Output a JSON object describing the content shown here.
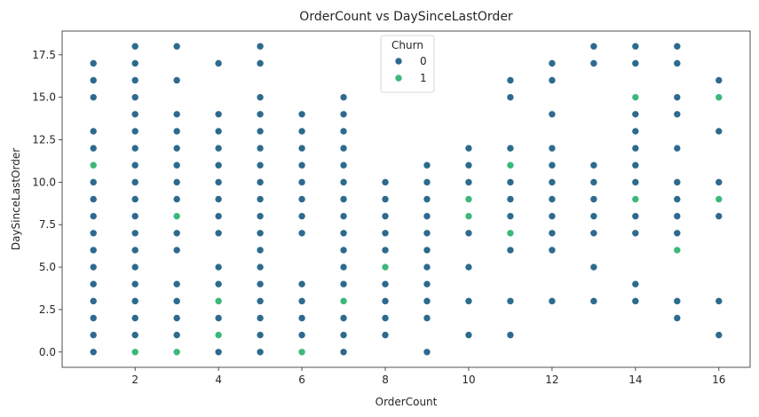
{
  "chart_data": {
    "type": "scatter",
    "title": "OrderCount vs DaySinceLastOrder",
    "xlabel": "OrderCount",
    "ylabel": "DaySinceLastOrder",
    "xlim": [
      0.25,
      16.75
    ],
    "ylim": [
      -0.9,
      18.9
    ],
    "xticks": [
      2,
      4,
      6,
      8,
      10,
      12,
      14,
      16
    ],
    "xtick_labels": [
      "2",
      "4",
      "6",
      "8",
      "10",
      "12",
      "14",
      "16"
    ],
    "yticks": [
      0,
      2.5,
      5,
      7.5,
      10,
      12.5,
      15,
      17.5
    ],
    "ytick_labels": [
      "0.0",
      "2.5",
      "5.0",
      "7.5",
      "10.0",
      "12.5",
      "15.0",
      "17.5"
    ],
    "grid": false,
    "legend": {
      "title": "Churn",
      "placement": "top-center"
    },
    "series": [
      {
        "name": "0",
        "color": "#2d6a8e",
        "points": [
          [
            1,
            0
          ],
          [
            1,
            1
          ],
          [
            1,
            2
          ],
          [
            1,
            3
          ],
          [
            1,
            4
          ],
          [
            1,
            5
          ],
          [
            1,
            6
          ],
          [
            1,
            7
          ],
          [
            1,
            8
          ],
          [
            1,
            9
          ],
          [
            1,
            10
          ],
          [
            1,
            12
          ],
          [
            1,
            13
          ],
          [
            1,
            15
          ],
          [
            1,
            16
          ],
          [
            1,
            17
          ],
          [
            2,
            1
          ],
          [
            2,
            2
          ],
          [
            2,
            3
          ],
          [
            2,
            4
          ],
          [
            2,
            5
          ],
          [
            2,
            6
          ],
          [
            2,
            7
          ],
          [
            2,
            8
          ],
          [
            2,
            9
          ],
          [
            2,
            10
          ],
          [
            2,
            11
          ],
          [
            2,
            12
          ],
          [
            2,
            13
          ],
          [
            2,
            14
          ],
          [
            2,
            15
          ],
          [
            2,
            16
          ],
          [
            2,
            17
          ],
          [
            2,
            18
          ],
          [
            3,
            1
          ],
          [
            3,
            2
          ],
          [
            3,
            3
          ],
          [
            3,
            4
          ],
          [
            3,
            6
          ],
          [
            3,
            7
          ],
          [
            3,
            9
          ],
          [
            3,
            10
          ],
          [
            3,
            11
          ],
          [
            3,
            12
          ],
          [
            3,
            13
          ],
          [
            3,
            14
          ],
          [
            3,
            16
          ],
          [
            3,
            18
          ],
          [
            4,
            0
          ],
          [
            4,
            2
          ],
          [
            4,
            4
          ],
          [
            4,
            5
          ],
          [
            4,
            7
          ],
          [
            4,
            8
          ],
          [
            4,
            9
          ],
          [
            4,
            10
          ],
          [
            4,
            11
          ],
          [
            4,
            12
          ],
          [
            4,
            13
          ],
          [
            4,
            14
          ],
          [
            4,
            17
          ],
          [
            5,
            0
          ],
          [
            5,
            1
          ],
          [
            5,
            2
          ],
          [
            5,
            3
          ],
          [
            5,
            4
          ],
          [
            5,
            5
          ],
          [
            5,
            6
          ],
          [
            5,
            7
          ],
          [
            5,
            8
          ],
          [
            5,
            9
          ],
          [
            5,
            10
          ],
          [
            5,
            11
          ],
          [
            5,
            12
          ],
          [
            5,
            13
          ],
          [
            5,
            14
          ],
          [
            5,
            15
          ],
          [
            5,
            17
          ],
          [
            5,
            18
          ],
          [
            6,
            1
          ],
          [
            6,
            2
          ],
          [
            6,
            3
          ],
          [
            6,
            4
          ],
          [
            6,
            7
          ],
          [
            6,
            8
          ],
          [
            6,
            9
          ],
          [
            6,
            10
          ],
          [
            6,
            11
          ],
          [
            6,
            12
          ],
          [
            6,
            13
          ],
          [
            6,
            14
          ],
          [
            7,
            0
          ],
          [
            7,
            1
          ],
          [
            7,
            2
          ],
          [
            7,
            4
          ],
          [
            7,
            5
          ],
          [
            7,
            6
          ],
          [
            7,
            7
          ],
          [
            7,
            8
          ],
          [
            7,
            9
          ],
          [
            7,
            10
          ],
          [
            7,
            11
          ],
          [
            7,
            12
          ],
          [
            7,
            13
          ],
          [
            7,
            14
          ],
          [
            7,
            15
          ],
          [
            8,
            1
          ],
          [
            8,
            2
          ],
          [
            8,
            3
          ],
          [
            8,
            4
          ],
          [
            8,
            6
          ],
          [
            8,
            7
          ],
          [
            8,
            8
          ],
          [
            8,
            9
          ],
          [
            8,
            10
          ],
          [
            9,
            0
          ],
          [
            9,
            2
          ],
          [
            9,
            3
          ],
          [
            9,
            4
          ],
          [
            9,
            5
          ],
          [
            9,
            6
          ],
          [
            9,
            7
          ],
          [
            9,
            8
          ],
          [
            9,
            9
          ],
          [
            9,
            10
          ],
          [
            9,
            11
          ],
          [
            10,
            1
          ],
          [
            10,
            3
          ],
          [
            10,
            5
          ],
          [
            10,
            7
          ],
          [
            10,
            10
          ],
          [
            10,
            11
          ],
          [
            10,
            12
          ],
          [
            11,
            1
          ],
          [
            11,
            3
          ],
          [
            11,
            6
          ],
          [
            11,
            8
          ],
          [
            11,
            9
          ],
          [
            11,
            10
          ],
          [
            11,
            12
          ],
          [
            11,
            15
          ],
          [
            11,
            16
          ],
          [
            12,
            3
          ],
          [
            12,
            6
          ],
          [
            12,
            7
          ],
          [
            12,
            8
          ],
          [
            12,
            9
          ],
          [
            12,
            10
          ],
          [
            12,
            11
          ],
          [
            12,
            12
          ],
          [
            12,
            14
          ],
          [
            12,
            16
          ],
          [
            12,
            17
          ],
          [
            13,
            3
          ],
          [
            13,
            5
          ],
          [
            13,
            7
          ],
          [
            13,
            8
          ],
          [
            13,
            9
          ],
          [
            13,
            10
          ],
          [
            13,
            11
          ],
          [
            13,
            17
          ],
          [
            13,
            18
          ],
          [
            14,
            3
          ],
          [
            14,
            4
          ],
          [
            14,
            7
          ],
          [
            14,
            8
          ],
          [
            14,
            10
          ],
          [
            14,
            11
          ],
          [
            14,
            12
          ],
          [
            14,
            13
          ],
          [
            14,
            14
          ],
          [
            14,
            17
          ],
          [
            14,
            18
          ],
          [
            15,
            2
          ],
          [
            15,
            3
          ],
          [
            15,
            7
          ],
          [
            15,
            8
          ],
          [
            15,
            9
          ],
          [
            15,
            10
          ],
          [
            15,
            12
          ],
          [
            15,
            14
          ],
          [
            15,
            15
          ],
          [
            15,
            17
          ],
          [
            15,
            18
          ],
          [
            16,
            1
          ],
          [
            16,
            3
          ],
          [
            16,
            8
          ],
          [
            16,
            10
          ],
          [
            16,
            13
          ],
          [
            16,
            16
          ]
        ]
      },
      {
        "name": "1",
        "color": "#3bb87a",
        "points": [
          [
            1,
            11
          ],
          [
            2,
            0
          ],
          [
            3,
            0
          ],
          [
            3,
            8
          ],
          [
            4,
            1
          ],
          [
            4,
            3
          ],
          [
            6,
            0
          ],
          [
            7,
            3
          ],
          [
            8,
            5
          ],
          [
            10,
            8
          ],
          [
            10,
            9
          ],
          [
            11,
            7
          ],
          [
            11,
            11
          ],
          [
            14,
            9
          ],
          [
            14,
            15
          ],
          [
            15,
            6
          ],
          [
            16,
            9
          ],
          [
            16,
            15
          ]
        ]
      }
    ]
  }
}
